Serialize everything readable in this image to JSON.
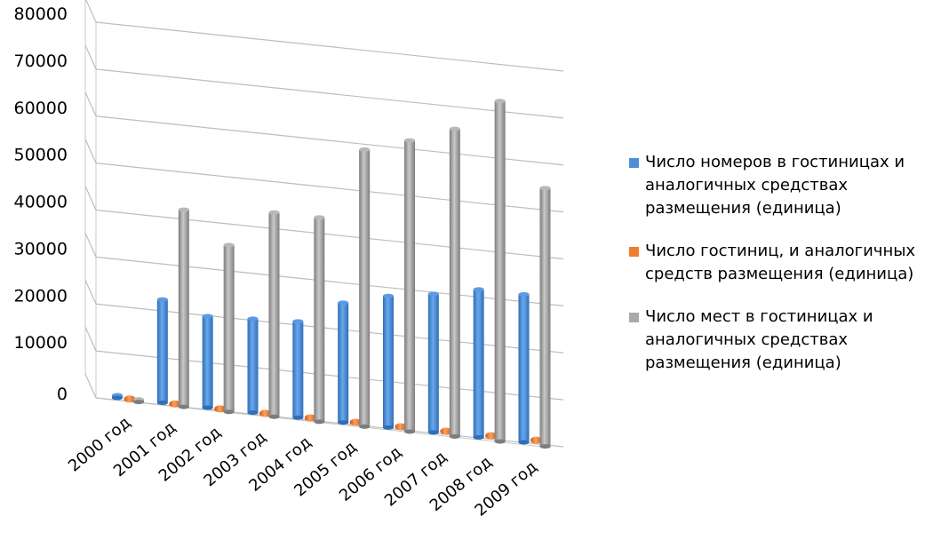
{
  "chart_data": {
    "type": "bar",
    "title": "",
    "xlabel": "",
    "ylabel": "",
    "ylim": [
      0,
      80000
    ],
    "yticks": [
      0,
      10000,
      20000,
      30000,
      40000,
      50000,
      60000,
      70000,
      80000
    ],
    "ytick_labels": [
      "0",
      "10000",
      "20000",
      "30000",
      "40000",
      "50000",
      "60000",
      "70000",
      "80000"
    ],
    "grid": true,
    "legend_position": "right",
    "categories": [
      "2000 год",
      "2001 год",
      "2002 год",
      "2003 год",
      "2004 год",
      "2005 год",
      "2006 год",
      "2007 год",
      "2008 год",
      "2009 год"
    ],
    "series": [
      {
        "name": "Число номеров в гостиницах и аналогичных средствах размещения   (единица)",
        "color": "#4a8fd8",
        "values": [
          300,
          22000,
          19500,
          20000,
          20500,
          25500,
          28000,
          29500,
          31500,
          31500
        ]
      },
      {
        "name": "Число гостиниц, и аналогичных средств размещения   (единица)",
        "color": "#f07d2a",
        "values": [
          800,
          800,
          800,
          900,
          1000,
          1100,
          1200,
          1300,
          1400,
          1500
        ]
      },
      {
        "name": "Число мест в гостиницах и аналогичных средствах размещения   (единица)",
        "color": "#a9a9a9",
        "values": [
          200,
          42000,
          35500,
          43500,
          43500,
          59000,
          62000,
          65500,
          72500,
          55000
        ]
      }
    ]
  }
}
